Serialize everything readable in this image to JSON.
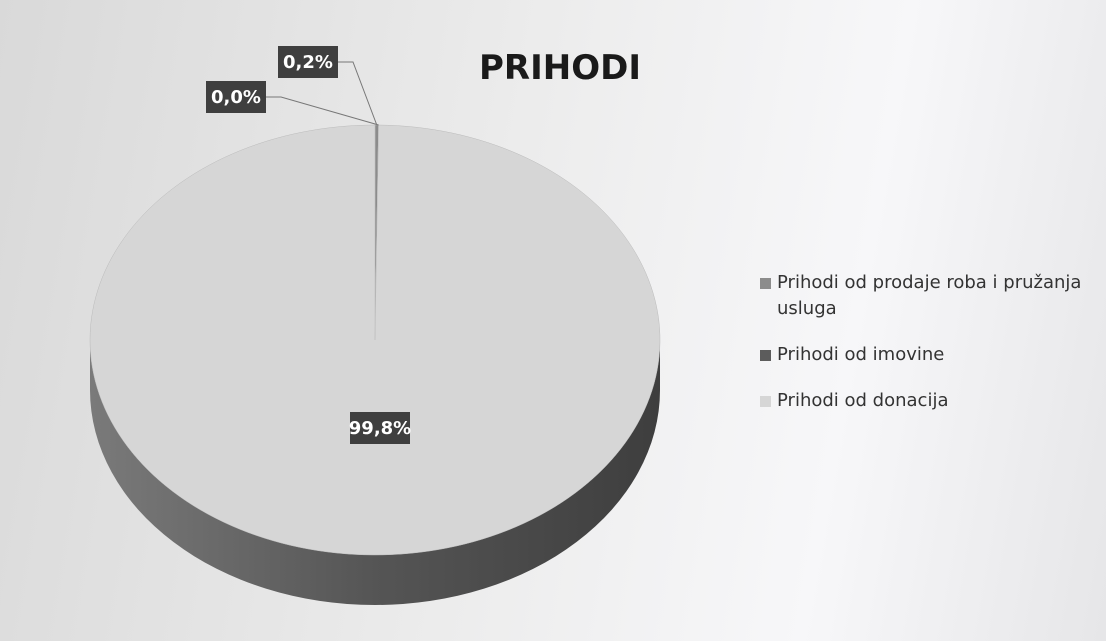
{
  "chart_data": {
    "type": "pie",
    "title": "PRIHODI",
    "categories": [
      "Prihodi od prodaje roba i pružanja usluga",
      "Prihodi od imovine",
      "Prihodi od donacija"
    ],
    "values": [
      0.2,
      0.0,
      99.8
    ],
    "value_labels": [
      "0,2%",
      "0,0%",
      "99,8%"
    ],
    "colors": [
      "#8c8c8c",
      "#5c5c5c",
      "#d6d6d6"
    ],
    "legend": "right"
  }
}
